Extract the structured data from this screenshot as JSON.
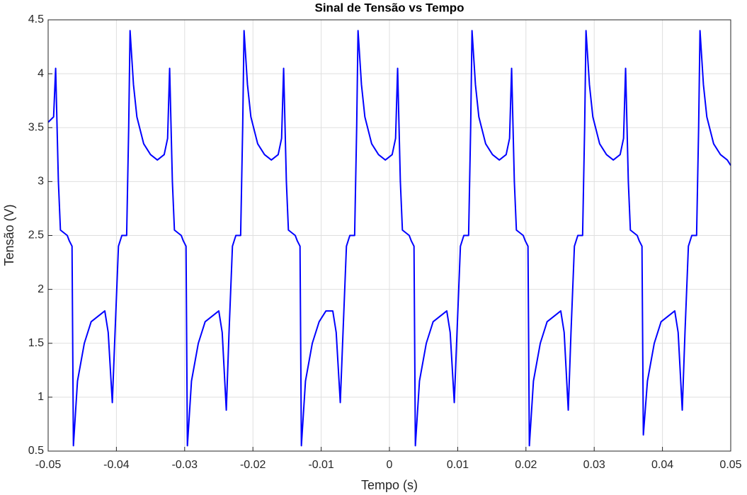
{
  "chart_data": {
    "type": "line",
    "title": "Sinal de Tensão vs Tempo",
    "xlabel": "Tempo (s)",
    "ylabel": "Tensão (V)",
    "xlim": [
      -0.05,
      0.05
    ],
    "ylim": [
      0.5,
      4.5
    ],
    "xticks": [
      -0.05,
      -0.04,
      -0.03,
      -0.02,
      -0.01,
      0,
      0.01,
      0.02,
      0.03,
      0.04,
      0.05
    ],
    "yticks": [
      0.5,
      1,
      1.5,
      2,
      2.5,
      3,
      3.5,
      4,
      4.5
    ],
    "grid": true,
    "x": [
      -0.05,
      -0.0492,
      -0.0489,
      -0.0485,
      -0.0482,
      -0.0472,
      -0.0469,
      -0.0465,
      -0.0463,
      -0.0457,
      -0.0447,
      -0.0437,
      -0.0427,
      -0.0417,
      -0.0412,
      -0.0406,
      -0.0402,
      -0.0397,
      -0.0392,
      -0.0385,
      -0.0382,
      -0.038,
      -0.0375,
      -0.037,
      -0.036,
      -0.035,
      -0.034,
      -0.033,
      -0.0325,
      -0.0322,
      -0.0318,
      -0.0315,
      -0.0305,
      -0.0302,
      -0.0298,
      -0.0296,
      -0.029,
      -0.028,
      -0.027,
      -0.026,
      -0.025,
      -0.0245,
      -0.0239,
      -0.0235,
      -0.023,
      -0.0225,
      -0.0218,
      -0.0215,
      -0.0213,
      -0.0208,
      -0.0203,
      -0.0193,
      -0.0183,
      -0.0173,
      -0.0163,
      -0.0158,
      -0.0155,
      -0.0151,
      -0.0148,
      -0.0138,
      -0.0135,
      -0.0131,
      -0.0129,
      -0.0123,
      -0.0113,
      -0.0103,
      -0.0093,
      -0.0083,
      -0.0078,
      -0.0072,
      -0.0068,
      -0.0063,
      -0.0058,
      -0.0051,
      -0.0048,
      -0.0046,
      -0.0041,
      -0.0036,
      -0.0026,
      -0.0016,
      -0.0006,
      0.0004,
      0.0009,
      0.0012,
      0.0016,
      0.0019,
      0.0029,
      0.0032,
      0.0036,
      0.0038,
      0.0044,
      0.0054,
      0.0064,
      0.0074,
      0.0084,
      0.0089,
      0.0095,
      0.0099,
      0.0104,
      0.0109,
      0.0116,
      0.0119,
      0.0121,
      0.0126,
      0.0131,
      0.0141,
      0.0151,
      0.0161,
      0.0171,
      0.0176,
      0.0179,
      0.0183,
      0.0186,
      0.0196,
      0.0199,
      0.0203,
      0.0205,
      0.0211,
      0.0221,
      0.0231,
      0.0241,
      0.0251,
      0.0256,
      0.0262,
      0.0266,
      0.0271,
      0.0276,
      0.0283,
      0.0286,
      0.0288,
      0.0293,
      0.0298,
      0.0308,
      0.0318,
      0.0328,
      0.0338,
      0.0343,
      0.0346,
      0.035,
      0.0353,
      0.0363,
      0.0366,
      0.037,
      0.0372,
      0.0378,
      0.0388,
      0.0398,
      0.0408,
      0.0418,
      0.0423,
      0.0429,
      0.0433,
      0.0438,
      0.0443,
      0.045,
      0.0453,
      0.0455,
      0.046,
      0.0465,
      0.0475,
      0.0485,
      0.0495,
      0.05
    ],
    "series": [
      {
        "color": "#0000ff",
        "values": [
          3.55,
          3.6,
          4.05,
          3.0,
          2.55,
          2.5,
          2.45,
          2.4,
          0.55,
          1.15,
          1.5,
          1.7,
          1.75,
          1.8,
          1.6,
          0.95,
          1.6,
          2.4,
          2.5,
          2.5,
          3.5,
          4.4,
          3.9,
          3.6,
          3.35,
          3.25,
          3.2,
          3.25,
          3.4,
          4.05,
          3.0,
          2.55,
          2.5,
          2.45,
          2.4,
          0.55,
          1.15,
          1.5,
          1.7,
          1.75,
          1.8,
          1.6,
          0.88,
          1.6,
          2.4,
          2.5,
          2.5,
          3.5,
          4.4,
          3.9,
          3.6,
          3.35,
          3.25,
          3.2,
          3.25,
          3.4,
          4.05,
          3.0,
          2.55,
          2.5,
          2.45,
          2.4,
          0.55,
          1.15,
          1.5,
          1.7,
          1.8,
          1.8,
          1.6,
          0.95,
          1.6,
          2.4,
          2.5,
          2.5,
          3.5,
          4.4,
          3.9,
          3.6,
          3.35,
          3.25,
          3.2,
          3.25,
          3.4,
          4.05,
          3.0,
          2.55,
          2.5,
          2.45,
          2.4,
          0.55,
          1.15,
          1.5,
          1.7,
          1.75,
          1.8,
          1.6,
          0.95,
          1.6,
          2.4,
          2.5,
          2.5,
          3.5,
          4.4,
          3.9,
          3.6,
          3.35,
          3.25,
          3.2,
          3.25,
          3.4,
          4.05,
          3.0,
          2.55,
          2.5,
          2.45,
          2.4,
          0.55,
          1.15,
          1.5,
          1.7,
          1.75,
          1.8,
          1.6,
          0.88,
          1.6,
          2.4,
          2.5,
          2.5,
          3.5,
          4.4,
          3.9,
          3.6,
          3.35,
          3.25,
          3.2,
          3.25,
          3.4,
          4.05,
          3.0,
          2.55,
          2.5,
          2.45,
          2.4,
          0.65,
          1.15,
          1.5,
          1.7,
          1.75,
          1.8,
          1.6,
          0.88,
          1.6,
          2.4,
          2.5,
          2.5,
          3.5,
          4.4,
          3.9,
          3.6,
          3.35,
          3.25,
          3.2,
          3.15
        ]
      }
    ]
  }
}
